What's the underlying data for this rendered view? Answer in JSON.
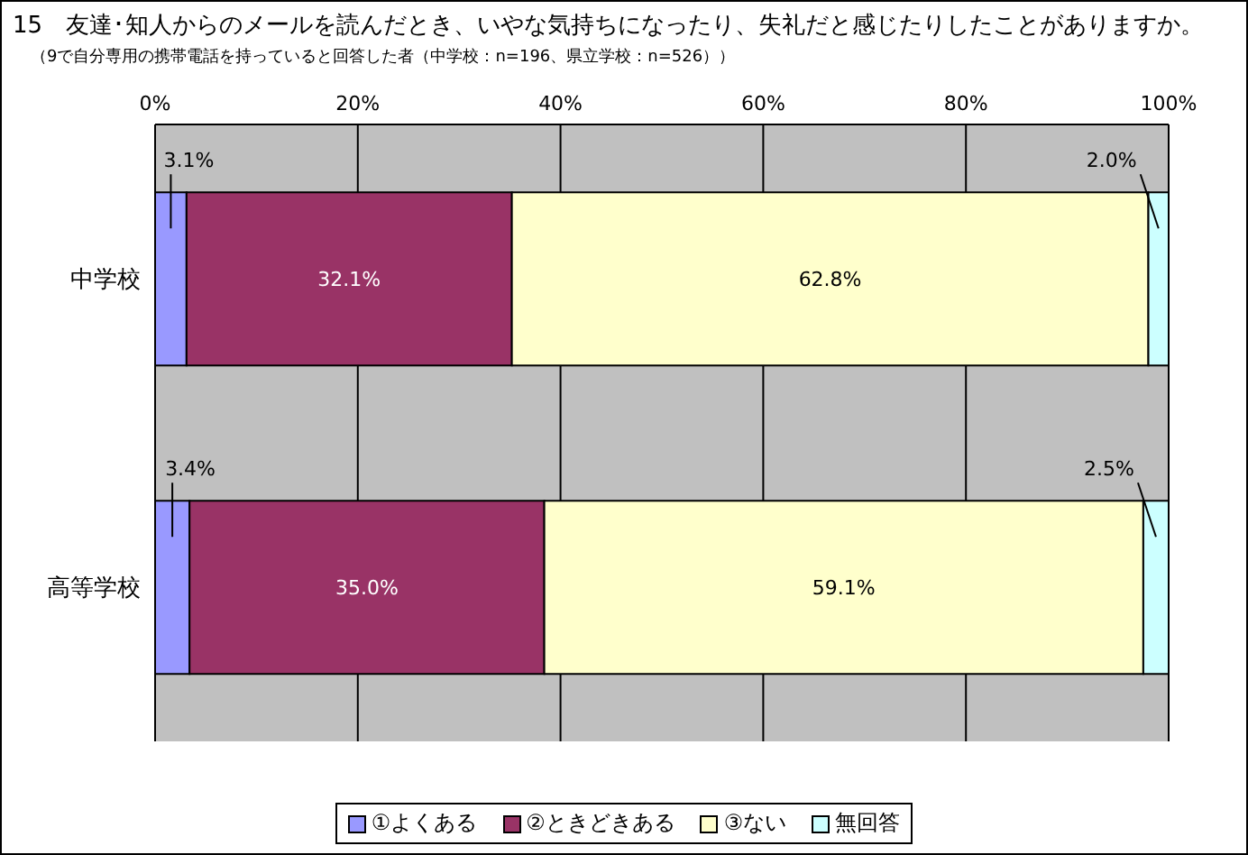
{
  "chart_data": {
    "type": "bar",
    "orientation": "horizontal",
    "stacked": true,
    "title": "15　友達･知人からのメールを読んだとき、いやな気持ちになったり、失礼だと感じたりしたことがありますか。",
    "subtitle": "（9で自分専用の携帯電話を持っていると回答した者（中学校：n=196、県立学校：n=526））",
    "categories": [
      "中学校",
      "高等学校"
    ],
    "series": [
      {
        "name": "①よくある",
        "color": "#9999ff",
        "values": [
          3.1,
          3.4
        ],
        "value_labels": [
          "3.1%",
          "3.4%"
        ]
      },
      {
        "name": "②ときどきある",
        "color": "#993366",
        "values": [
          32.1,
          35.0
        ],
        "value_labels": [
          "32.1%",
          "35.0%"
        ]
      },
      {
        "name": "③ない",
        "color": "#ffffcc",
        "values": [
          62.8,
          59.1
        ],
        "value_labels": [
          "62.8%",
          "59.1%"
        ]
      },
      {
        "name": "無回答",
        "color": "#ccffff",
        "values": [
          2.0,
          2.5
        ],
        "value_labels": [
          "2.0%",
          "2.5%"
        ]
      }
    ],
    "xlim": [
      0,
      100
    ],
    "xticks": [
      {
        "value": 0,
        "label": "0%"
      },
      {
        "value": 20,
        "label": "20%"
      },
      {
        "value": 40,
        "label": "40%"
      },
      {
        "value": 60,
        "label": "60%"
      },
      {
        "value": 80,
        "label": "80%"
      },
      {
        "value": 100,
        "label": "100%"
      }
    ],
    "grid": "x",
    "legend": "bottom"
  }
}
